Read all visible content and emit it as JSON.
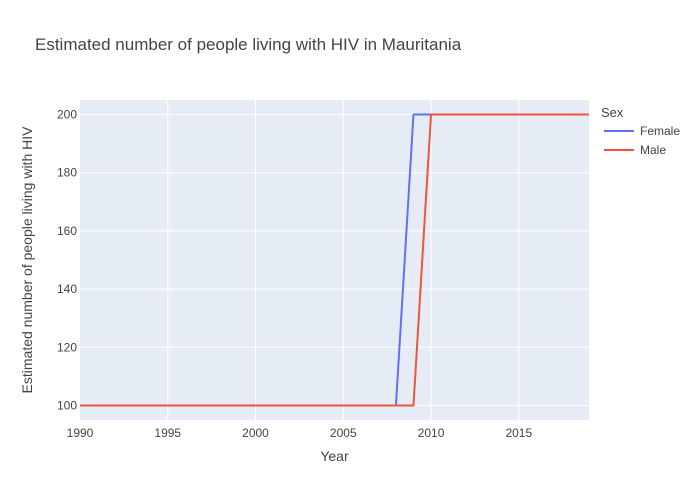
{
  "chart_data": {
    "type": "line",
    "title": "Estimated number of people living with HIV in Mauritania",
    "xlabel": "Year",
    "ylabel": "Estimated number of people living with HIV",
    "xlim": [
      1990,
      2019
    ],
    "ylim": [
      95,
      205
    ],
    "x_ticks": [
      1990,
      1995,
      2000,
      2005,
      2010,
      2015
    ],
    "y_ticks": [
      100,
      120,
      140,
      160,
      180,
      200
    ],
    "grid": true,
    "legend": {
      "title": "Sex",
      "placement": "right"
    },
    "x": [
      1990,
      1991,
      1992,
      1993,
      1994,
      1995,
      1996,
      1997,
      1998,
      1999,
      2000,
      2001,
      2002,
      2003,
      2004,
      2005,
      2006,
      2007,
      2008,
      2009,
      2010,
      2011,
      2012,
      2013,
      2014,
      2015,
      2016,
      2017,
      2018,
      2019
    ],
    "series": [
      {
        "name": "Female",
        "color": "#636efa",
        "values": [
          100,
          100,
          100,
          100,
          100,
          100,
          100,
          100,
          100,
          100,
          100,
          100,
          100,
          100,
          100,
          100,
          100,
          100,
          100,
          200,
          200,
          200,
          200,
          200,
          200,
          200,
          200,
          200,
          200,
          200
        ]
      },
      {
        "name": "Male",
        "color": "#ef553b",
        "values": [
          100,
          100,
          100,
          100,
          100,
          100,
          100,
          100,
          100,
          100,
          100,
          100,
          100,
          100,
          100,
          100,
          100,
          100,
          100,
          100,
          200,
          200,
          200,
          200,
          200,
          200,
          200,
          200,
          200,
          200
        ]
      }
    ]
  }
}
